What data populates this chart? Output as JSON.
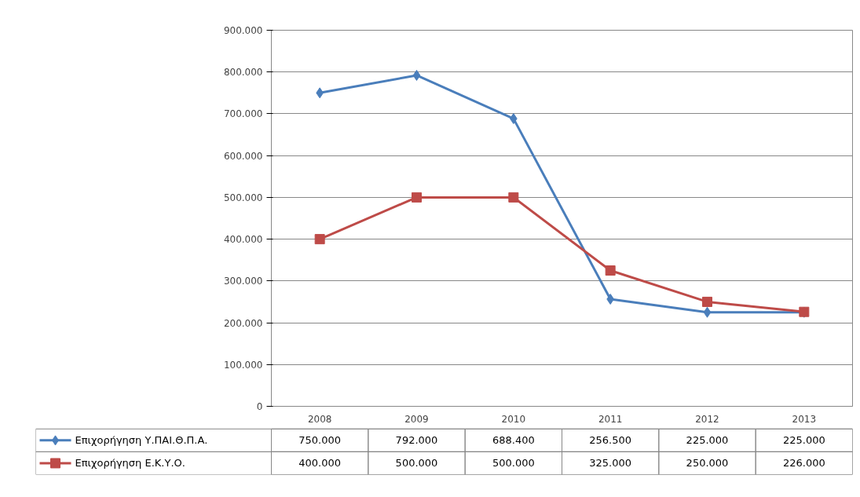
{
  "chart_data": {
    "type": "line",
    "categories": [
      "2008",
      "2009",
      "2010",
      "2011",
      "2012",
      "2013"
    ],
    "series": [
      {
        "name": "Επιχορήγηση Υ.ΠΑΙ.Θ.Π.Α.",
        "color": "#4a7ebb",
        "marker": "diamond",
        "values": [
          750000,
          792000,
          688400,
          256500,
          225000,
          225000
        ],
        "value_labels": [
          "750.000",
          "792.000",
          "688.400",
          "256.500",
          "225.000",
          "225.000"
        ]
      },
      {
        "name": "Επιχορήγηση Ε.Κ.Υ.Ο.",
        "color": "#be4b48",
        "marker": "square",
        "values": [
          400000,
          500000,
          500000,
          325000,
          250000,
          226000
        ],
        "value_labels": [
          "400.000",
          "500.000",
          "500.000",
          "325.000",
          "250.000",
          "226.000"
        ]
      }
    ],
    "ylim": [
      0,
      900000
    ],
    "yticks": [
      {
        "value": 0,
        "label": "0"
      },
      {
        "value": 100000,
        "label": "100.000"
      },
      {
        "value": 200000,
        "label": "200.000"
      },
      {
        "value": 300000,
        "label": "300.000"
      },
      {
        "value": 400000,
        "label": "400.000"
      },
      {
        "value": 500000,
        "label": "500.000"
      },
      {
        "value": 600000,
        "label": "600.000"
      },
      {
        "value": 700000,
        "label": "700.000"
      },
      {
        "value": 800000,
        "label": "800.000"
      },
      {
        "value": 900000,
        "label": "900.000"
      }
    ],
    "grid": "y",
    "legend": "bottom",
    "line_style": "solid"
  }
}
